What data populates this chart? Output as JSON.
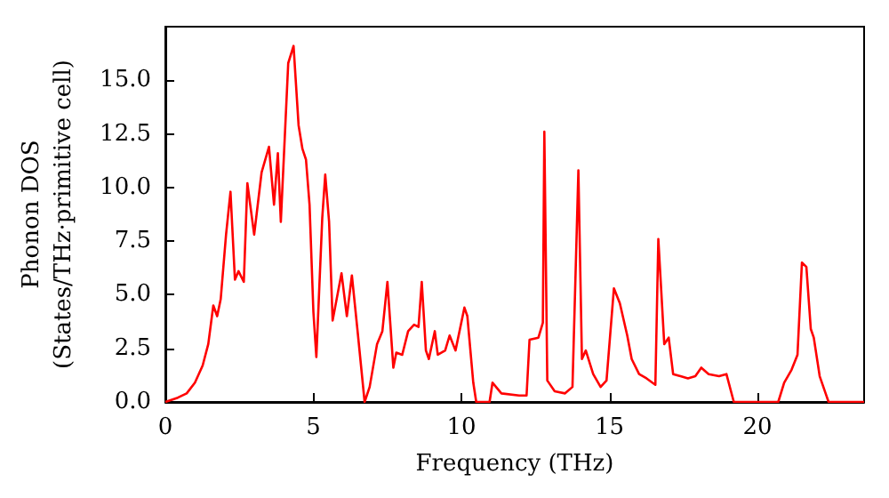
{
  "chart_data": {
    "type": "line",
    "xlabel": "Frequency (THz)",
    "ylabel": "Phonon DOS\n(States/THz·primitive cell)",
    "xlim": [
      0,
      23.6
    ],
    "xticks": [
      0,
      5,
      10,
      15,
      20
    ],
    "ylim": [
      0,
      17.5
    ],
    "yticks": [
      {
        "value": 0,
        "label": "0.0"
      },
      {
        "value": 2.5,
        "label": "2.5"
      },
      {
        "value": 5,
        "label": "5.0"
      },
      {
        "value": 7.5,
        "label": "7.5"
      },
      {
        "value": 10,
        "label": "10.0"
      },
      {
        "value": 12.5,
        "label": "12.5"
      },
      {
        "value": 15,
        "label": "15.0"
      }
    ],
    "grid": false,
    "marker": "none",
    "line_style": "solid",
    "series": [
      {
        "color": "#ff0000",
        "x": [
          0,
          0.42,
          0.72,
          1.0,
          1.26,
          1.45,
          1.62,
          1.75,
          1.87,
          2.05,
          2.2,
          2.35,
          2.47,
          2.65,
          2.77,
          3.0,
          3.25,
          3.5,
          3.67,
          3.8,
          3.9,
          4.15,
          4.33,
          4.5,
          4.63,
          4.75,
          4.87,
          5.0,
          5.1,
          5.3,
          5.4,
          5.53,
          5.65,
          5.95,
          6.13,
          6.3,
          6.5,
          6.73,
          6.9,
          7.15,
          7.33,
          7.5,
          7.7,
          7.8,
          8.0,
          8.2,
          8.4,
          8.55,
          8.66,
          8.8,
          8.9,
          9.1,
          9.2,
          9.45,
          9.6,
          9.8,
          10.1,
          10.2,
          10.4,
          10.5,
          10.95,
          11.05,
          11.35,
          11.95,
          12.2,
          12.3,
          12.6,
          12.75,
          12.8,
          12.9,
          13.15,
          13.5,
          13.75,
          13.95,
          14.07,
          14.2,
          14.45,
          14.7,
          14.9,
          15.15,
          15.35,
          15.6,
          15.75,
          16.0,
          16.25,
          16.55,
          16.65,
          16.85,
          17.0,
          17.15,
          17.4,
          17.65,
          17.9,
          18.1,
          18.35,
          18.7,
          18.95,
          19.2,
          20.7,
          20.9,
          21.15,
          21.35,
          21.5,
          21.65,
          21.8,
          21.9,
          22.1,
          22.3,
          22.4,
          23.6
        ],
        "values": [
          0,
          0.2,
          0.4,
          0.9,
          1.7,
          2.7,
          4.5,
          4.0,
          4.8,
          7.8,
          9.8,
          5.7,
          6.1,
          5.6,
          10.2,
          7.8,
          10.7,
          11.9,
          9.2,
          11.6,
          8.4,
          15.8,
          16.6,
          12.9,
          11.8,
          11.3,
          9.2,
          4.2,
          2.1,
          8.6,
          10.6,
          8.4,
          3.8,
          6.0,
          4.0,
          5.9,
          3.2,
          0,
          0.7,
          2.7,
          3.3,
          5.6,
          1.6,
          2.3,
          2.2,
          3.3,
          3.6,
          3.5,
          5.6,
          2.4,
          2.0,
          3.3,
          2.2,
          2.4,
          3.1,
          2.4,
          4.4,
          4.0,
          0.9,
          0,
          0,
          0.9,
          0.4,
          0.3,
          0.3,
          2.9,
          3.0,
          3.7,
          12.6,
          1.0,
          0.5,
          0.4,
          0.7,
          10.8,
          2.0,
          2.4,
          1.3,
          0.7,
          1.0,
          5.3,
          4.6,
          3.1,
          2.0,
          1.3,
          1.1,
          0.8,
          7.6,
          2.7,
          3.0,
          1.3,
          1.2,
          1.1,
          1.2,
          1.6,
          1.3,
          1.2,
          1.3,
          0,
          0,
          0.9,
          1.5,
          2.2,
          6.5,
          6.3,
          3.4,
          3.0,
          1.2,
          0.4,
          0,
          0
        ]
      }
    ]
  }
}
